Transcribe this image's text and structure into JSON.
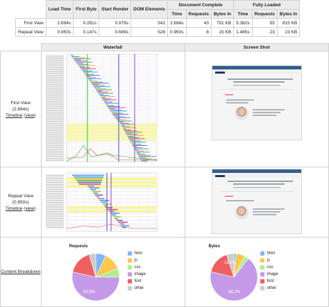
{
  "summary": {
    "groups": {
      "doc_complete": "Document Complete",
      "fully_loaded": "Fully Loaded"
    },
    "headers": [
      "Load Time",
      "First Byte",
      "Start Render",
      "DOM Elements",
      "Time",
      "Requests",
      "Bytes In",
      "Time",
      "Requests",
      "Bytes In"
    ],
    "rows": [
      {
        "label": "First View",
        "cells": [
          "2.694s",
          "0.281s",
          "0.978s",
          "541",
          "2.694s",
          "43",
          "791 KB",
          "5.382s",
          "55",
          "815 KB"
        ]
      },
      {
        "label": "Repeat View",
        "cells": [
          "0.950s",
          "0.147s",
          "0.689s",
          "528",
          "0.950s",
          "8",
          "15 KB",
          "1.485s",
          "23",
          "23 KB"
        ]
      }
    ]
  },
  "columns": {
    "waterfall": "Waterfall",
    "screenshot": "Screen Shot"
  },
  "first_view": {
    "label": "First View",
    "time": "(2.694s)",
    "timeline": "Timeline",
    "view": "view"
  },
  "repeat_view": {
    "label": "Repeat View",
    "time": "(0.950s)",
    "timeline": "Timeline",
    "view": "view"
  },
  "breakdown": {
    "label": "Content Breakdown",
    "requests_title": "Requests",
    "bytes_title": "Bytes",
    "legend": [
      "html",
      "js",
      "css",
      "image",
      "font",
      "other"
    ],
    "colors": {
      "html": "#82b5fc",
      "js": "#fec84a",
      "css": "#b2ea94",
      "image": "#c49ae8",
      "font": "#f06060",
      "other": "#cccccc"
    },
    "requests": {
      "values": [
        7,
        12,
        6,
        53.5,
        17,
        4.5
      ],
      "label": "53.5%"
    },
    "bytes": {
      "values": [
        1.5,
        6,
        3,
        68.2,
        16.2,
        5.1
      ],
      "labels": [
        "16.2%",
        "68.2%"
      ]
    }
  }
}
